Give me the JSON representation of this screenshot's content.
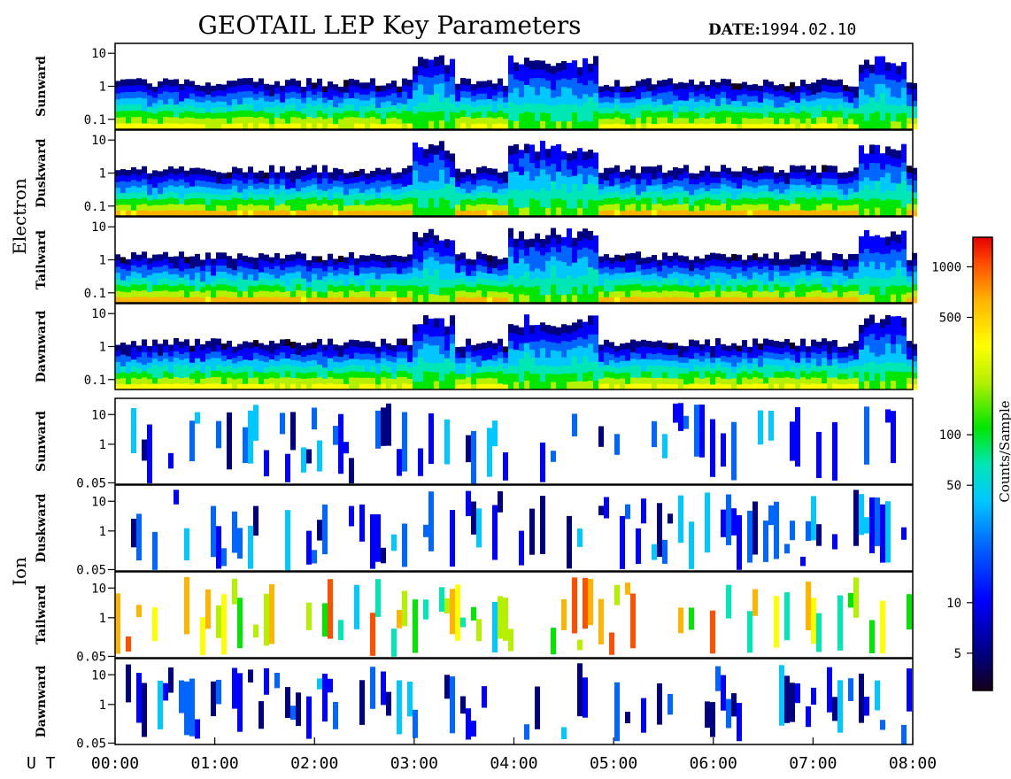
{
  "title": "GEOTAIL LEP Key Parameters",
  "date_label": "DATE:",
  "date_value": "1994.02.10",
  "ut_label": "U T",
  "colors": {
    "frame": "#000000",
    "background": "#ffffff",
    "colormap": [
      "#14001a",
      "#000080",
      "#0000ff",
      "#0066ff",
      "#00c8ff",
      "#00e6b4",
      "#00e600",
      "#b4f000",
      "#ffff00",
      "#ffb400",
      "#ff5000",
      "#e60000"
    ]
  },
  "chart_data": {
    "type": "heatmap",
    "x_axis": {
      "range": [
        "00:00",
        "08:00"
      ],
      "ticks": [
        "00:00",
        "01:00",
        "02:00",
        "03:00",
        "04:00",
        "05:00",
        "06:00",
        "07:00",
        "08:00"
      ]
    },
    "groups": [
      {
        "label": "Electron",
        "panels": [
          {
            "name": "Sunward",
            "ytick_labels": [
              "10",
              "1",
              "0.1"
            ],
            "yticks": [
              10,
              1,
              0.1
            ],
            "ylim": [
              0.05,
              20
            ]
          },
          {
            "name": "Duskward",
            "ytick_labels": [
              "10",
              "1",
              "0.1"
            ],
            "yticks": [
              10,
              1,
              0.1
            ],
            "ylim": [
              0.05,
              20
            ]
          },
          {
            "name": "Tailward",
            "ytick_labels": [
              "10",
              "1",
              "0.1"
            ],
            "yticks": [
              10,
              1,
              0.1
            ],
            "ylim": [
              0.05,
              20
            ]
          },
          {
            "name": "Dawnward",
            "ytick_labels": [
              "10",
              "1",
              "0.1"
            ],
            "yticks": [
              10,
              1,
              0.1
            ],
            "ylim": [
              0.05,
              20
            ]
          }
        ]
      },
      {
        "label": "Ion",
        "panels": [
          {
            "name": "Sunward",
            "ytick_labels": [
              "10",
              "1",
              "0.05"
            ],
            "yticks": [
              10,
              1,
              0.05
            ],
            "ylim": [
              0.045,
              35
            ]
          },
          {
            "name": "Duskward",
            "ytick_labels": [
              "10",
              "1",
              "0.05"
            ],
            "yticks": [
              10,
              1,
              0.05
            ],
            "ylim": [
              0.045,
              35
            ]
          },
          {
            "name": "Tailward",
            "ytick_labels": [
              "10",
              "1",
              "0.05"
            ],
            "yticks": [
              10,
              1,
              0.05
            ],
            "ylim": [
              0.045,
              35
            ]
          },
          {
            "name": "Dawnward",
            "ytick_labels": [
              "10",
              "1",
              "0.05"
            ],
            "yticks": [
              10,
              1,
              0.05
            ],
            "ylim": [
              0.045,
              35
            ]
          }
        ]
      }
    ],
    "colorbar": {
      "label": "Counts/Sample",
      "scale": "log",
      "range": [
        3,
        1500
      ],
      "tick_labels": [
        "1000",
        "500",
        "100",
        "50",
        "10",
        "5"
      ],
      "ticks": [
        1000,
        500,
        100,
        50,
        10,
        5
      ]
    }
  }
}
